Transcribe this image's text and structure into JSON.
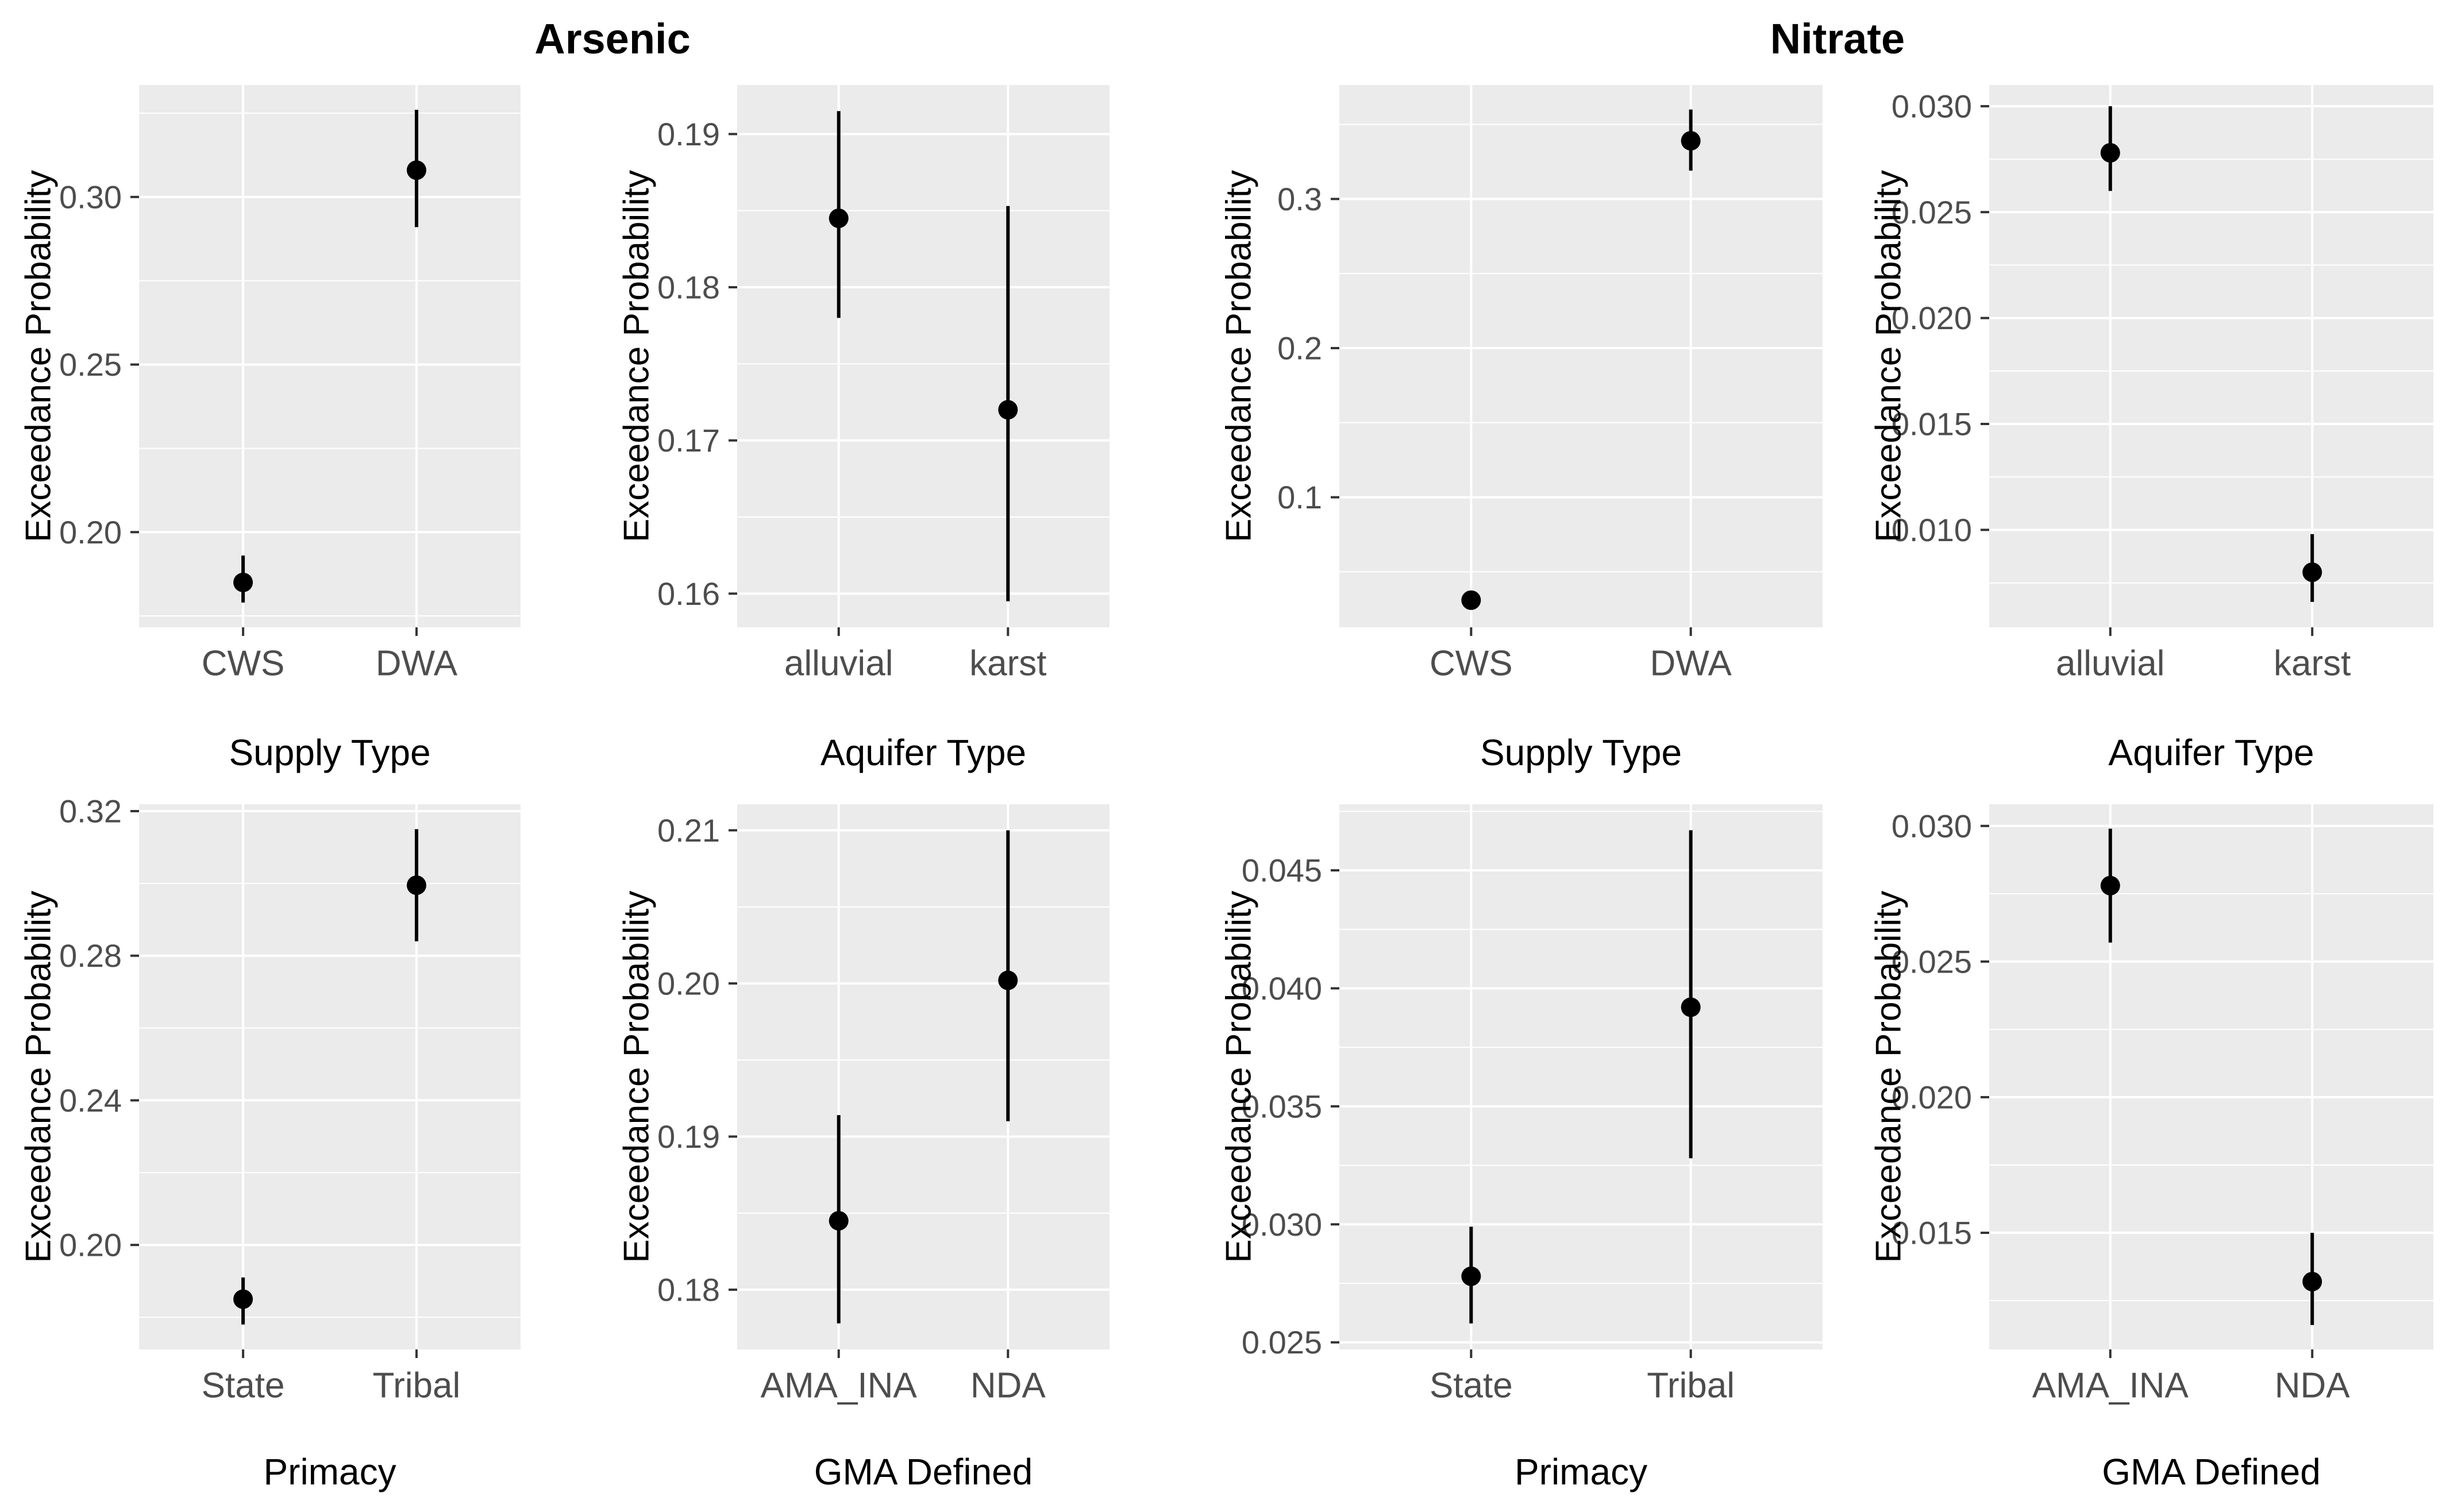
{
  "figure": {
    "group_titles": {
      "left": "Arsenic",
      "right": "Nitrate"
    },
    "y_axis_title": "Exceedance Probability",
    "colors": {
      "panel_background": "#ebebeb",
      "gridline": "#ffffff",
      "point": "#000000",
      "tick_mark": "#333333",
      "tick_label": "#4d4d4d",
      "axis_title": "#000000",
      "title": "#000000",
      "page_background": "#ffffff"
    }
  },
  "chart_data": [
    {
      "type": "pointrange",
      "group": "Arsenic",
      "xlabel": "Supply Type",
      "ylabel": "Exceedance Probability",
      "categories": [
        "CWS",
        "DWA"
      ],
      "points": [
        {
          "label": "CWS",
          "y": 0.185,
          "lo": 0.179,
          "hi": 0.193
        },
        {
          "label": "DWA",
          "y": 0.308,
          "lo": 0.291,
          "hi": 0.326
        }
      ],
      "yticks": [
        0.2,
        0.25,
        0.3
      ],
      "ytick_labels": [
        "0.20",
        "0.25",
        "0.30"
      ],
      "minor_step": 0.025,
      "ylim": [
        0.1716,
        0.3334
      ],
      "grid": true,
      "legend": "none"
    },
    {
      "type": "pointrange",
      "group": "Arsenic",
      "xlabel": "Aquifer Type",
      "ylabel": "Exceedance Probability",
      "categories": [
        "alluvial",
        "karst"
      ],
      "points": [
        {
          "label": "alluvial",
          "y": 0.1845,
          "lo": 0.178,
          "hi": 0.1915
        },
        {
          "label": "karst",
          "y": 0.172,
          "lo": 0.1595,
          "hi": 0.1853
        }
      ],
      "yticks": [
        0.16,
        0.17,
        0.18,
        0.19
      ],
      "ytick_labels": [
        "0.16",
        "0.17",
        "0.18",
        "0.19"
      ],
      "minor_step": 0.005,
      "ylim": [
        0.1578,
        0.1932
      ],
      "grid": true,
      "legend": "none"
    },
    {
      "type": "pointrange",
      "group": "Nitrate",
      "xlabel": "Supply Type",
      "ylabel": "Exceedance Probability",
      "categories": [
        "CWS",
        "DWA"
      ],
      "points": [
        {
          "label": "CWS",
          "y": 0.031,
          "lo": 0.026,
          "hi": 0.036
        },
        {
          "label": "DWA",
          "y": 0.339,
          "lo": 0.319,
          "hi": 0.36
        }
      ],
      "yticks": [
        0.1,
        0.2,
        0.3
      ],
      "ytick_labels": [
        "0.1",
        "0.2",
        "0.3"
      ],
      "minor_step": 0.05,
      "ylim": [
        0.0128,
        0.3764
      ],
      "grid": true,
      "legend": "none"
    },
    {
      "type": "pointrange",
      "group": "Nitrate",
      "xlabel": "Aquifer Type",
      "ylabel": "Exceedance Probability",
      "categories": [
        "alluvial",
        "karst"
      ],
      "points": [
        {
          "label": "alluvial",
          "y": 0.0278,
          "lo": 0.026,
          "hi": 0.03
        },
        {
          "label": "karst",
          "y": 0.008,
          "lo": 0.0066,
          "hi": 0.0098
        }
      ],
      "yticks": [
        0.01,
        0.015,
        0.02,
        0.025,
        0.03
      ],
      "ytick_labels": [
        "0.010",
        "0.015",
        "0.020",
        "0.025",
        "0.030"
      ],
      "minor_step": 0.0025,
      "ylim": [
        0.0054,
        0.031
      ],
      "grid": true,
      "legend": "none"
    },
    {
      "type": "pointrange",
      "group": "Arsenic",
      "xlabel": "Primacy",
      "ylabel": "Exceedance Probability",
      "categories": [
        "State",
        "Tribal"
      ],
      "points": [
        {
          "label": "State",
          "y": 0.185,
          "lo": 0.178,
          "hi": 0.191
        },
        {
          "label": "Tribal",
          "y": 0.2995,
          "lo": 0.284,
          "hi": 0.315
        }
      ],
      "yticks": [
        0.2,
        0.24,
        0.28,
        0.32
      ],
      "ytick_labels": [
        "0.20",
        "0.24",
        "0.28",
        "0.32"
      ],
      "minor_step": 0.02,
      "ylim": [
        0.1711,
        0.3219
      ],
      "grid": true,
      "legend": "none"
    },
    {
      "type": "pointrange",
      "group": "Arsenic",
      "xlabel": "GMA Defined",
      "ylabel": "Exceedance Probability",
      "categories": [
        "AMA_INA",
        "NDA"
      ],
      "points": [
        {
          "label": "AMA_INA",
          "y": 0.1845,
          "lo": 0.1778,
          "hi": 0.1914
        },
        {
          "label": "NDA",
          "y": 0.2002,
          "lo": 0.191,
          "hi": 0.21
        }
      ],
      "yticks": [
        0.18,
        0.19,
        0.2,
        0.21
      ],
      "ytick_labels": [
        "0.18",
        "0.19",
        "0.20",
        "0.21"
      ],
      "minor_step": 0.005,
      "ylim": [
        0.1761,
        0.2117
      ],
      "grid": true,
      "legend": "none"
    },
    {
      "type": "pointrange",
      "group": "Nitrate",
      "xlabel": "Primacy",
      "ylabel": "Exceedance Probability",
      "categories": [
        "State",
        "Tribal"
      ],
      "points": [
        {
          "label": "State",
          "y": 0.0278,
          "lo": 0.0258,
          "hi": 0.0299
        },
        {
          "label": "Tribal",
          "y": 0.0392,
          "lo": 0.0328,
          "hi": 0.0467
        }
      ],
      "yticks": [
        0.025,
        0.03,
        0.035,
        0.04,
        0.045
      ],
      "ytick_labels": [
        "0.025",
        "0.030",
        "0.035",
        "0.040",
        "0.045"
      ],
      "minor_step": 0.0025,
      "ylim": [
        0.0247,
        0.0478
      ],
      "grid": true,
      "legend": "none"
    },
    {
      "type": "pointrange",
      "group": "Nitrate",
      "xlabel": "GMA Defined",
      "ylabel": "Exceedance Probability",
      "categories": [
        "AMA_INA",
        "NDA"
      ],
      "points": [
        {
          "label": "AMA_INA",
          "y": 0.0278,
          "lo": 0.0257,
          "hi": 0.0299
        },
        {
          "label": "NDA",
          "y": 0.0132,
          "lo": 0.0116,
          "hi": 0.015
        }
      ],
      "yticks": [
        0.015,
        0.02,
        0.025,
        0.03
      ],
      "ytick_labels": [
        "0.015",
        "0.020",
        "0.025",
        "0.030"
      ],
      "minor_step": 0.0025,
      "ylim": [
        0.0107,
        0.0308
      ],
      "grid": true,
      "legend": "none"
    }
  ]
}
